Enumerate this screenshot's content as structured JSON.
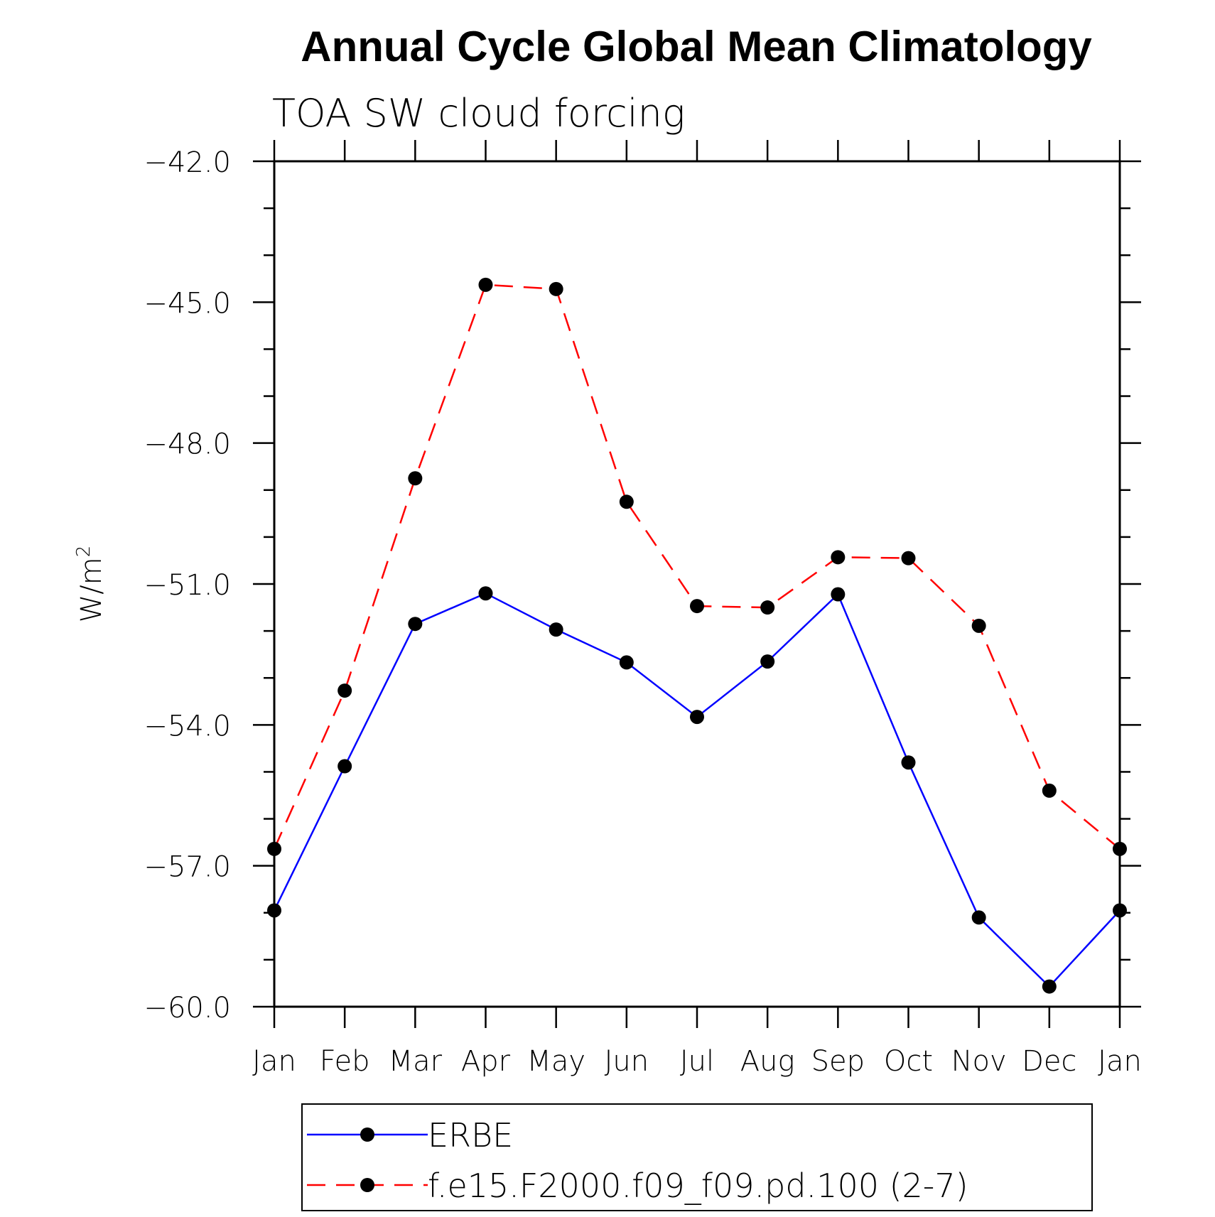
{
  "chart_data": {
    "type": "line",
    "title": "Annual Cycle Global Mean Climatology",
    "subtitle": "TOA SW cloud forcing",
    "xlabel": "",
    "ylabel": "W/m",
    "ylabel_sup": "2",
    "ylim": [
      -60.0,
      -42.0
    ],
    "y_ticks": [
      "-42.0",
      "-45.0",
      "-48.0",
      "-51.0",
      "-54.0",
      "-57.0",
      "-60.0"
    ],
    "y_tick_values": [
      -42,
      -45,
      -48,
      -51,
      -54,
      -57,
      -60
    ],
    "categories": [
      "Jan",
      "Feb",
      "Mar",
      "Apr",
      "May",
      "Jun",
      "Jul",
      "Aug",
      "Sep",
      "Oct",
      "Nov",
      "Dec",
      "Jan"
    ],
    "grid": false,
    "legend_position": "bottom",
    "series": [
      {
        "name": "ERBE",
        "color": "#0000ff",
        "dash": "solid",
        "values": [
          -57.95,
          -54.88,
          -51.85,
          -51.2,
          -51.97,
          -52.67,
          -53.83,
          -52.65,
          -51.22,
          -54.8,
          -58.1,
          -59.57,
          -57.95
        ]
      },
      {
        "name": "f.e15.F2000.f09_f09.pd.100 (2-7)",
        "color": "#ff0000",
        "dash": "dashed",
        "values": [
          -56.64,
          -53.27,
          -48.75,
          -44.63,
          -44.72,
          -49.25,
          -51.47,
          -51.5,
          -50.43,
          -50.45,
          -51.89,
          -55.4,
          -56.64
        ]
      }
    ]
  }
}
